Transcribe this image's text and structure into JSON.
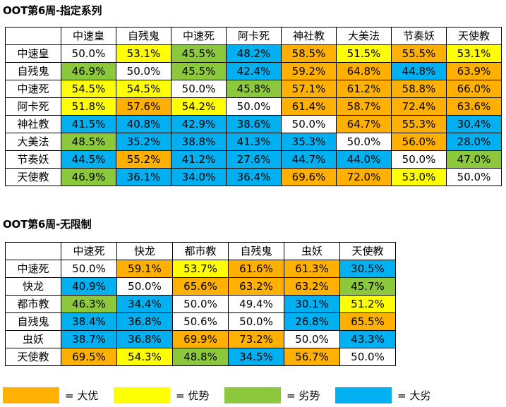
{
  "colors": {
    "big_advantage": "#FFB000",
    "advantage": "#FFFF00",
    "disadvantage": "#8CC83C",
    "big_disadvantage": "#00B0F0",
    "even": "#FFFFFF"
  },
  "chart_data": [
    {
      "type": "table",
      "title": "OOT第6周-指定系列",
      "columns": [
        "中速皇",
        "自残鬼",
        "中速死",
        "阿卡死",
        "神社教",
        "大美法",
        "节奏妖",
        "天使教"
      ],
      "rows": [
        {
          "label": "中速皇",
          "values": [
            "50.0%",
            "53.1%",
            "45.5%",
            "48.2%",
            "58.5%",
            "51.5%",
            "55.5%",
            "53.1%"
          ],
          "levels": [
            "even",
            "advantage",
            "disadvantage",
            "big_disadvantage",
            "big_advantage",
            "advantage",
            "big_advantage",
            "advantage"
          ]
        },
        {
          "label": "自残鬼",
          "values": [
            "46.9%",
            "50.0%",
            "45.5%",
            "42.4%",
            "59.2%",
            "64.8%",
            "44.8%",
            "63.9%"
          ],
          "levels": [
            "disadvantage",
            "even",
            "disadvantage",
            "big_disadvantage",
            "big_advantage",
            "big_advantage",
            "big_disadvantage",
            "big_advantage"
          ]
        },
        {
          "label": "中速死",
          "values": [
            "54.5%",
            "54.5%",
            "50.0%",
            "45.8%",
            "57.1%",
            "61.2%",
            "58.8%",
            "66.0%"
          ],
          "levels": [
            "advantage",
            "advantage",
            "even",
            "disadvantage",
            "big_advantage",
            "big_advantage",
            "big_advantage",
            "big_advantage"
          ]
        },
        {
          "label": "阿卡死",
          "values": [
            "51.8%",
            "57.6%",
            "54.2%",
            "50.0%",
            "61.4%",
            "58.7%",
            "72.4%",
            "63.6%"
          ],
          "levels": [
            "advantage",
            "big_advantage",
            "advantage",
            "even",
            "big_advantage",
            "big_advantage",
            "big_advantage",
            "big_advantage"
          ]
        },
        {
          "label": "神社教",
          "values": [
            "41.5%",
            "40.8%",
            "42.9%",
            "38.6%",
            "50.0%",
            "64.7%",
            "55.3%",
            "30.4%"
          ],
          "levels": [
            "big_disadvantage",
            "big_disadvantage",
            "big_disadvantage",
            "big_disadvantage",
            "even",
            "big_advantage",
            "big_advantage",
            "big_disadvantage"
          ]
        },
        {
          "label": "大美法",
          "values": [
            "48.5%",
            "35.2%",
            "38.8%",
            "41.3%",
            "35.3%",
            "50.0%",
            "56.0%",
            "28.0%"
          ],
          "levels": [
            "disadvantage",
            "big_disadvantage",
            "big_disadvantage",
            "big_disadvantage",
            "big_disadvantage",
            "even",
            "big_advantage",
            "big_disadvantage"
          ]
        },
        {
          "label": "节奏妖",
          "values": [
            "44.5%",
            "55.2%",
            "41.2%",
            "27.6%",
            "44.7%",
            "44.0%",
            "50.0%",
            "47.0%"
          ],
          "levels": [
            "big_disadvantage",
            "big_advantage",
            "big_disadvantage",
            "big_disadvantage",
            "big_disadvantage",
            "big_disadvantage",
            "even",
            "disadvantage"
          ]
        },
        {
          "label": "天使教",
          "values": [
            "46.9%",
            "36.1%",
            "34.0%",
            "36.4%",
            "69.6%",
            "72.0%",
            "53.0%",
            "50.0%"
          ],
          "levels": [
            "disadvantage",
            "big_disadvantage",
            "big_disadvantage",
            "big_disadvantage",
            "big_advantage",
            "big_advantage",
            "advantage",
            "even"
          ]
        }
      ]
    },
    {
      "type": "table",
      "title": "OOT第6周-无限制",
      "columns": [
        "中速死",
        "快龙",
        "都市教",
        "自残鬼",
        "虫妖",
        "天使教"
      ],
      "rows": [
        {
          "label": "中速死",
          "values": [
            "50.0%",
            "59.1%",
            "53.7%",
            "61.6%",
            "61.3%",
            "30.5%"
          ],
          "levels": [
            "even",
            "big_advantage",
            "advantage",
            "big_advantage",
            "big_advantage",
            "big_disadvantage"
          ]
        },
        {
          "label": "快龙",
          "values": [
            "40.9%",
            "50.0%",
            "65.6%",
            "63.2%",
            "63.2%",
            "45.7%"
          ],
          "levels": [
            "big_disadvantage",
            "even",
            "big_advantage",
            "big_advantage",
            "big_advantage",
            "disadvantage"
          ]
        },
        {
          "label": "都市教",
          "values": [
            "46.3%",
            "34.4%",
            "50.0%",
            "49.4%",
            "30.1%",
            "51.2%"
          ],
          "levels": [
            "disadvantage",
            "big_disadvantage",
            "even",
            "even",
            "big_disadvantage",
            "advantage"
          ]
        },
        {
          "label": "自残鬼",
          "values": [
            "38.4%",
            "36.8%",
            "50.6%",
            "50.0%",
            "26.8%",
            "65.5%"
          ],
          "levels": [
            "big_disadvantage",
            "big_disadvantage",
            "even",
            "even",
            "big_disadvantage",
            "big_advantage"
          ]
        },
        {
          "label": "虫妖",
          "values": [
            "38.7%",
            "36.8%",
            "69.9%",
            "73.2%",
            "50.0%",
            "43.3%"
          ],
          "levels": [
            "big_disadvantage",
            "big_disadvantage",
            "big_advantage",
            "big_advantage",
            "even",
            "big_disadvantage"
          ]
        },
        {
          "label": "天使教",
          "values": [
            "69.5%",
            "54.3%",
            "48.8%",
            "34.5%",
            "56.7%",
            "50.0%"
          ],
          "levels": [
            "big_advantage",
            "advantage",
            "disadvantage",
            "big_disadvantage",
            "big_advantage",
            "even"
          ]
        }
      ]
    }
  ],
  "legend": [
    {
      "level": "big_advantage",
      "label": "= 大优"
    },
    {
      "level": "advantage",
      "label": "= 优势"
    },
    {
      "level": "disadvantage",
      "label": "= 劣势"
    },
    {
      "level": "big_disadvantage",
      "label": "= 大劣"
    }
  ]
}
